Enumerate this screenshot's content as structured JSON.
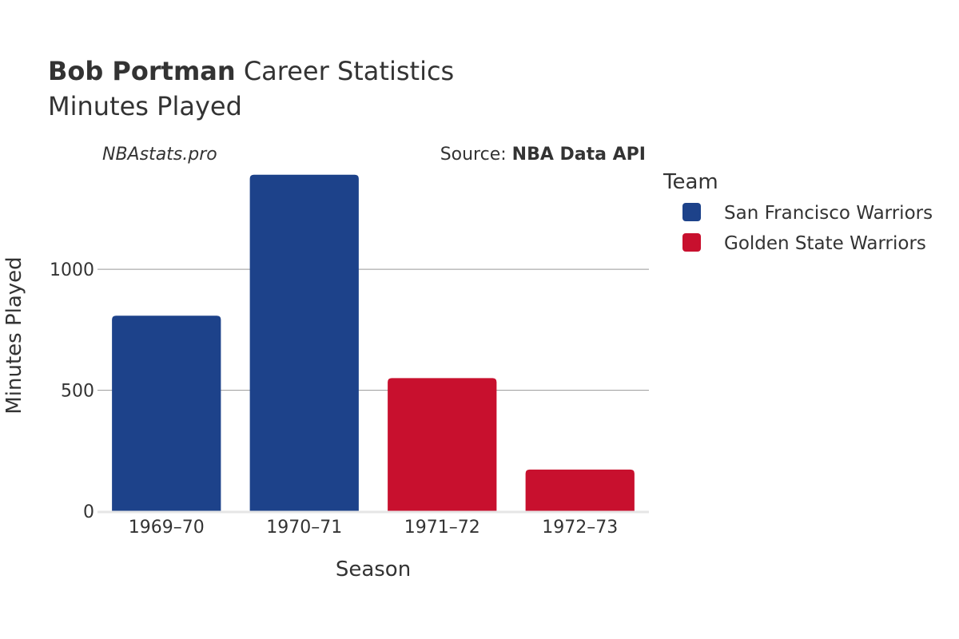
{
  "chart_data": {
    "type": "bar",
    "title": {
      "name_bold": "Bob Portman",
      "name_rest": " Career Statistics",
      "subtitle": "Minutes Played"
    },
    "watermark": "NBAstats.pro",
    "source": {
      "prefix": "Source: ",
      "name": "NBA Data API"
    },
    "xlabel": "Season",
    "ylabel": "Minutes Played",
    "ylim": [
      0,
      1400
    ],
    "yticks": [
      0,
      500,
      1000
    ],
    "categories": [
      "1969–70",
      "1970–71",
      "1971–72",
      "1972–73"
    ],
    "bars": [
      {
        "season": "1969–70",
        "team": "San Francisco Warriors",
        "value": 808
      },
      {
        "season": "1970–71",
        "team": "San Francisco Warriors",
        "value": 1391
      },
      {
        "season": "1971–72",
        "team": "Golden State Warriors",
        "value": 550
      },
      {
        "season": "1972–73",
        "team": "Golden State Warriors",
        "value": 172
      }
    ],
    "legend": {
      "title": "Team",
      "position": "right",
      "entries": [
        {
          "name": "San Francisco Warriors",
          "color": "#1d428a"
        },
        {
          "name": "Golden State Warriors",
          "color": "#c8102e"
        }
      ]
    },
    "grid": true
  }
}
